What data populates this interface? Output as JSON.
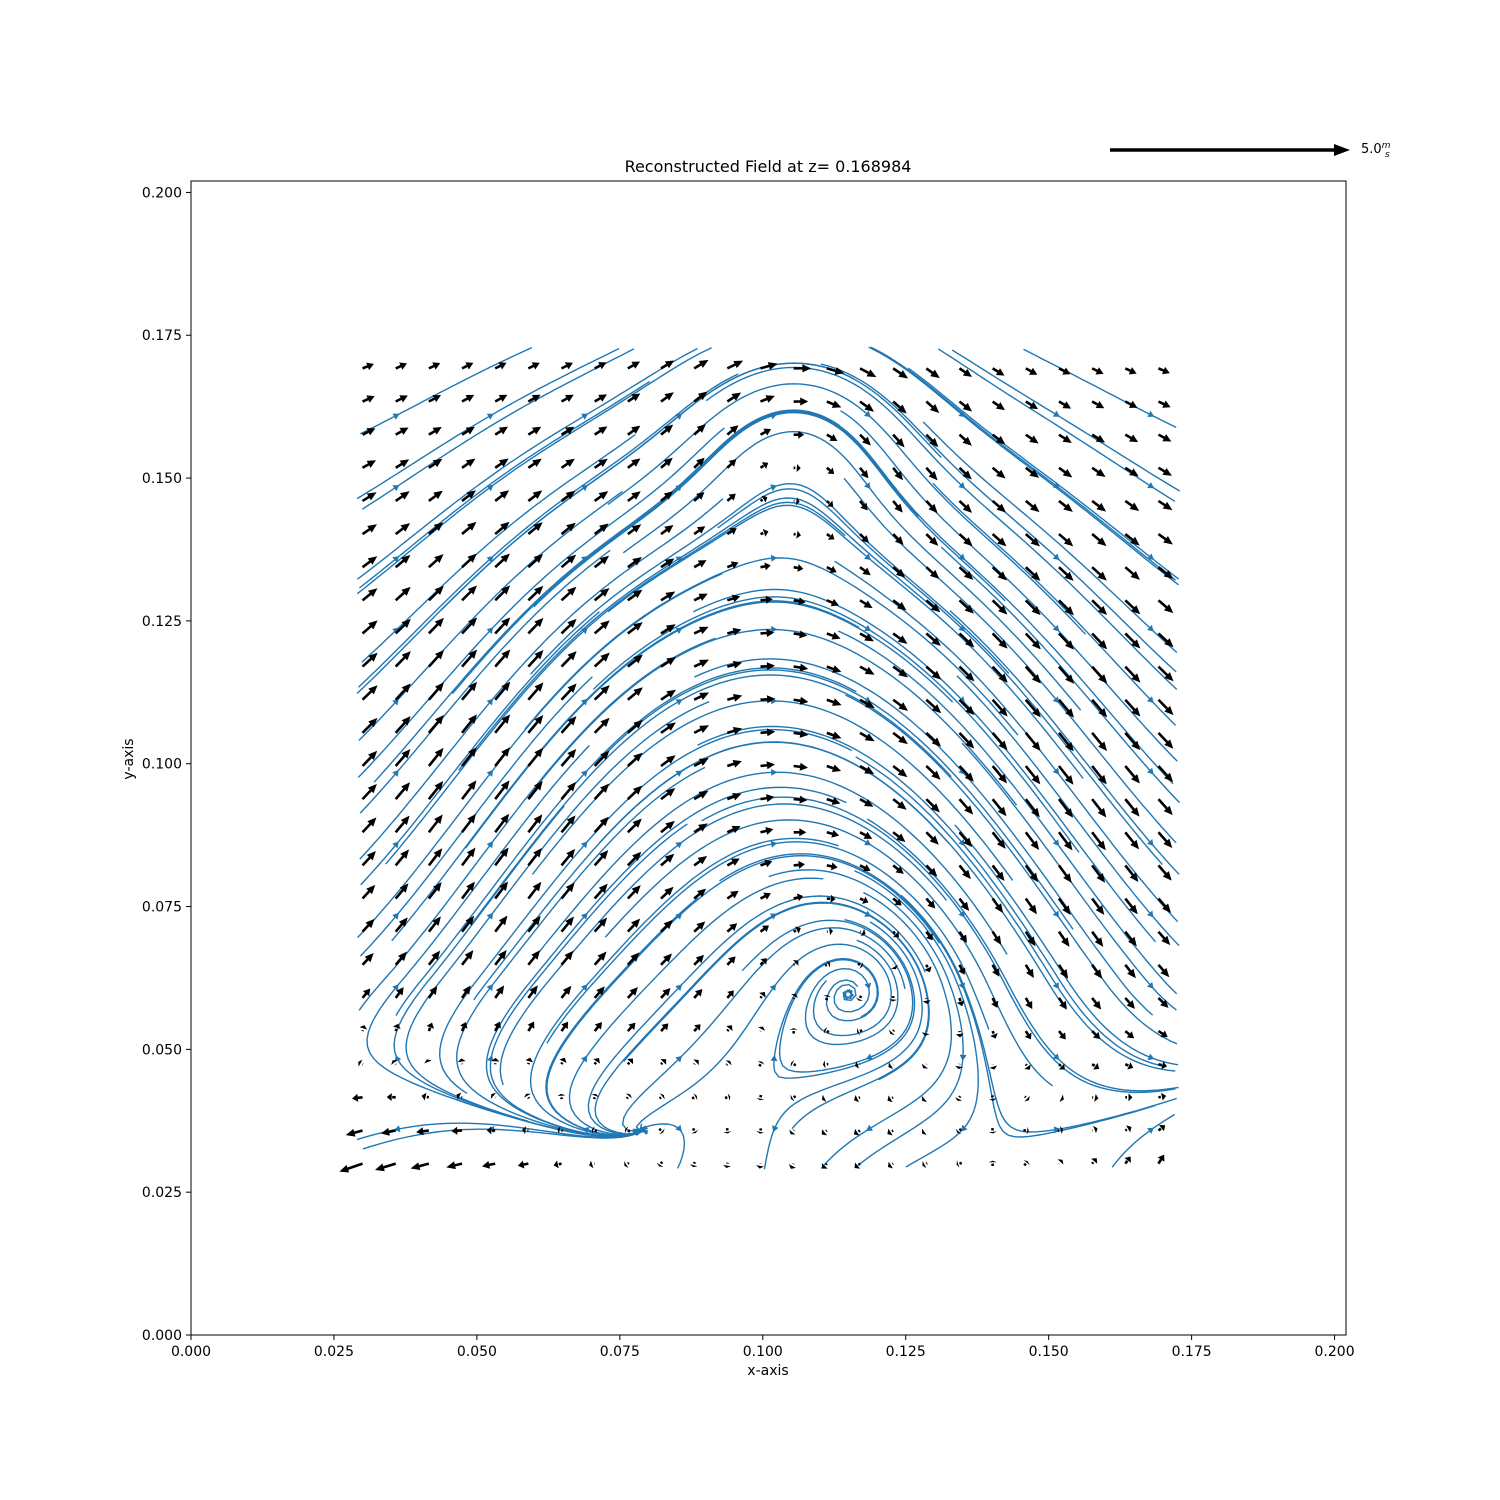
{
  "chart_data": {
    "type": "quiver",
    "title": "Reconstructed Field at z= 0.168984",
    "xlabel": "x-axis",
    "ylabel": "y-axis",
    "xlim": [
      0.0,
      0.202
    ],
    "ylim": [
      0.0,
      0.202
    ],
    "x_ticks": [
      "0.000",
      "0.025",
      "0.050",
      "0.075",
      "0.100",
      "0.125",
      "0.150",
      "0.175",
      "0.200"
    ],
    "y_ticks": [
      "0.000",
      "0.025",
      "0.050",
      "0.075",
      "0.100",
      "0.125",
      "0.150",
      "0.175",
      "0.200"
    ],
    "grid": false,
    "grid_extent": {
      "x": [
        0.03,
        0.172
      ],
      "y": [
        0.03,
        0.172
      ]
    },
    "grid_spacing": 0.0058,
    "features": {
      "vortex_center": [
        0.1065,
        0.1605
      ],
      "saddle_point": [
        0.1065,
        0.0435
      ]
    },
    "key": {
      "value": 5.0,
      "label": "5.0",
      "unit_num": "m",
      "unit_den": "s"
    },
    "colors": {
      "arrows": "#000000",
      "streamlines": "#1f77b4"
    }
  }
}
